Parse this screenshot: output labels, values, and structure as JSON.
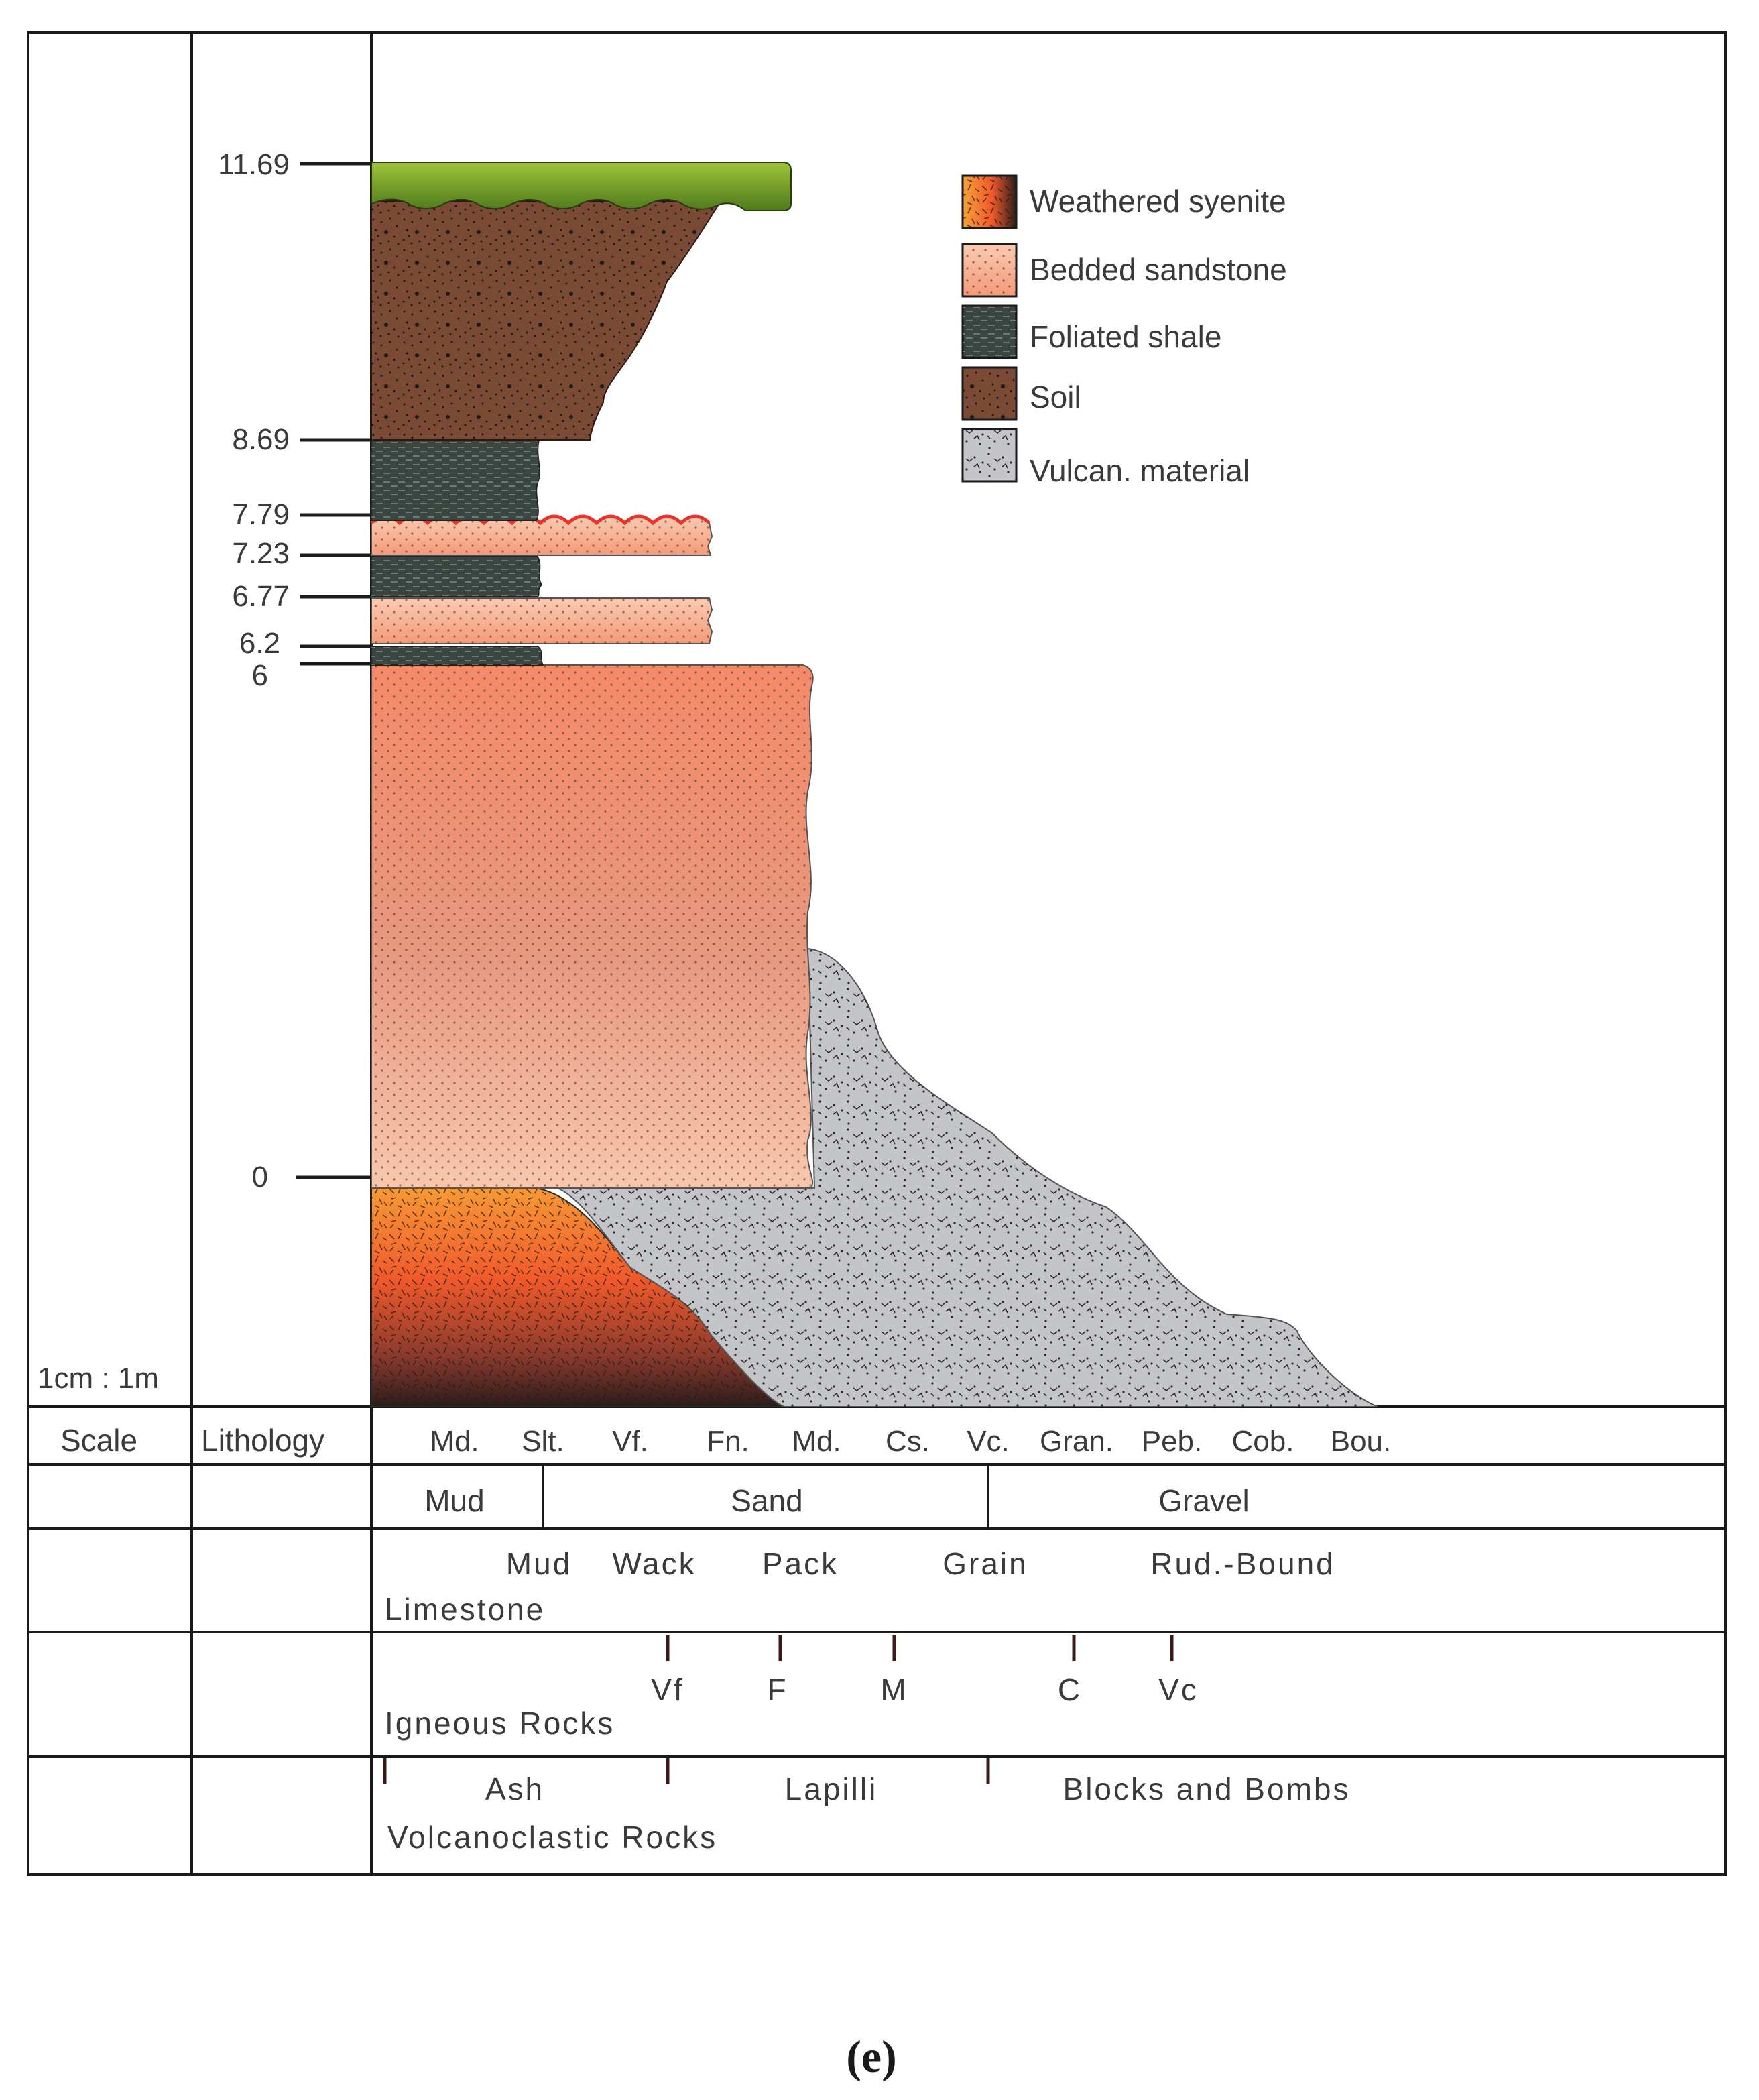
{
  "depth_labels": [
    "11.69",
    "8.69",
    "7.79",
    "7.23",
    "6.77",
    "6.2",
    "6",
    "0"
  ],
  "scale": {
    "value": "1cm : 1m",
    "label": "Scale"
  },
  "lithology_label": "Lithology",
  "grain_size": [
    "Md.",
    "Slt.",
    "Vf.",
    "Fn.",
    "Md.",
    "Cs.",
    "Vc.",
    "Gran.",
    "Peb.",
    "Cob.",
    "Bou."
  ],
  "classes": [
    "Mud",
    "Sand",
    "Gravel"
  ],
  "limestone": {
    "title": "Limestone",
    "types": [
      "Mud",
      "Wack",
      "Pack",
      "Grain",
      "Rud.-Bound"
    ]
  },
  "igneous": {
    "title": "Igneous Rocks",
    "types": [
      "Vf",
      "F",
      "M",
      "C",
      "Vc"
    ]
  },
  "volcanoclastic": {
    "title": "Volcanoclastic Rocks",
    "types": [
      "Ash",
      "Lapilli",
      "Blocks and Bombs"
    ]
  },
  "legend": [
    {
      "label": "Weathered syenite",
      "swatch": "syenite"
    },
    {
      "label": "Bedded sandstone",
      "swatch": "sand"
    },
    {
      "label": "Foliated shale",
      "swatch": "shale"
    },
    {
      "label": "Soil",
      "swatch": "soil"
    },
    {
      "label": "Vulcan. material",
      "swatch": "volc"
    }
  ],
  "caption": "(e)",
  "colors": {
    "soil": "#7a4a35",
    "shale": "#3b4640",
    "sandstone": "#f2a080",
    "syenite": "#f2842e",
    "volcanic": "#c4c5c9",
    "grass": "#8bb52e"
  }
}
